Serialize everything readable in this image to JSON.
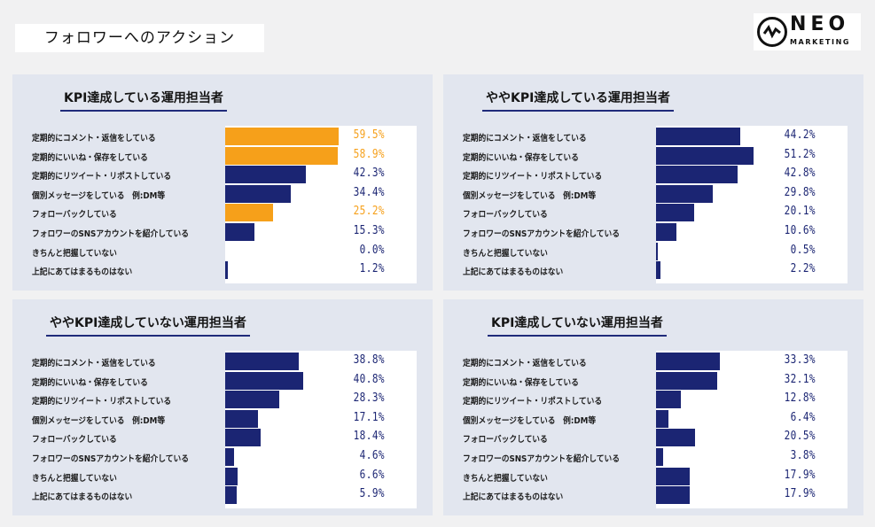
{
  "page": {
    "title": "フォロワーへのアクション",
    "logo": {
      "name": "NEO",
      "sub": "MARKETING"
    }
  },
  "colors": {
    "navy": "#1b2573",
    "orange": "#f6a01a",
    "panel_bg": "#e2e6ef"
  },
  "chart_data": [
    {
      "type": "bar",
      "orientation": "horizontal",
      "title": "KPI達成している運用担当者",
      "categories": [
        "定期的にコメント・返信をしている",
        "定期的にいいね・保存をしている",
        "定期的にリツイート・リポストしている",
        "個別メッセージをしている　例:DM等",
        "フォローバックしている",
        "フォロワーのSNSアカウントを紹介している",
        "きちんと把握していない",
        "上記にあてはまるものはない"
      ],
      "values": [
        59.5,
        58.9,
        42.3,
        34.4,
        25.2,
        15.3,
        0.0,
        1.2
      ],
      "labels": [
        "59.5%",
        "58.9%",
        "42.3%",
        "34.4%",
        "25.2%",
        "15.3%",
        "0.0%",
        "1.2%"
      ],
      "highlight": [
        true,
        true,
        false,
        false,
        true,
        false,
        false,
        false
      ],
      "xlim": [
        0,
        100
      ]
    },
    {
      "type": "bar",
      "orientation": "horizontal",
      "title": "ややKPI達成している運用担当者",
      "categories": [
        "定期的にコメント・返信をしている",
        "定期的にいいね・保存をしている",
        "定期的にリツイート・リポストしている",
        "個別メッセージをしている　例:DM等",
        "フォローバックしている",
        "フォロワーのSNSアカウントを紹介している",
        "きちんと把握していない",
        "上記にあてはまるものはない"
      ],
      "values": [
        44.2,
        51.2,
        42.8,
        29.8,
        20.1,
        10.6,
        0.5,
        2.2
      ],
      "labels": [
        "44.2%",
        "51.2%",
        "42.8%",
        "29.8%",
        "20.1%",
        "10.6%",
        "0.5%",
        "2.2%"
      ],
      "highlight": [
        false,
        false,
        false,
        false,
        false,
        false,
        false,
        false
      ],
      "xlim": [
        0,
        100
      ]
    },
    {
      "type": "bar",
      "orientation": "horizontal",
      "title": "ややKPI達成していない運用担当者",
      "categories": [
        "定期的にコメント・返信をしている",
        "定期的にいいね・保存をしている",
        "定期的にリツイート・リポストしている",
        "個別メッセージをしている　例:DM等",
        "フォローバックしている",
        "フォロワーのSNSアカウントを紹介している",
        "きちんと把握していない",
        "上記にあてはまるものはない"
      ],
      "values": [
        38.8,
        40.8,
        28.3,
        17.1,
        18.4,
        4.6,
        6.6,
        5.9
      ],
      "labels": [
        "38.8%",
        "40.8%",
        "28.3%",
        "17.1%",
        "18.4%",
        "4.6%",
        "6.6%",
        "5.9%"
      ],
      "highlight": [
        false,
        false,
        false,
        false,
        false,
        false,
        false,
        false
      ],
      "xlim": [
        0,
        100
      ]
    },
    {
      "type": "bar",
      "orientation": "horizontal",
      "title": "KPI達成していない運用担当者",
      "categories": [
        "定期的にコメント・返信をしている",
        "定期的にいいね・保存をしている",
        "定期的にリツイート・リポストしている",
        "個別メッセージをしている　例:DM等",
        "フォローバックしている",
        "フォロワーのSNSアカウントを紹介している",
        "きちんと把握していない",
        "上記にあてはまるものはない"
      ],
      "values": [
        33.3,
        32.1,
        12.8,
        6.4,
        20.5,
        3.8,
        17.9,
        17.9
      ],
      "labels": [
        "33.3%",
        "32.1%",
        "12.8%",
        "6.4%",
        "20.5%",
        "3.8%",
        "17.9%",
        "17.9%"
      ],
      "highlight": [
        false,
        false,
        false,
        false,
        false,
        false,
        false,
        false
      ],
      "xlim": [
        0,
        100
      ]
    }
  ]
}
